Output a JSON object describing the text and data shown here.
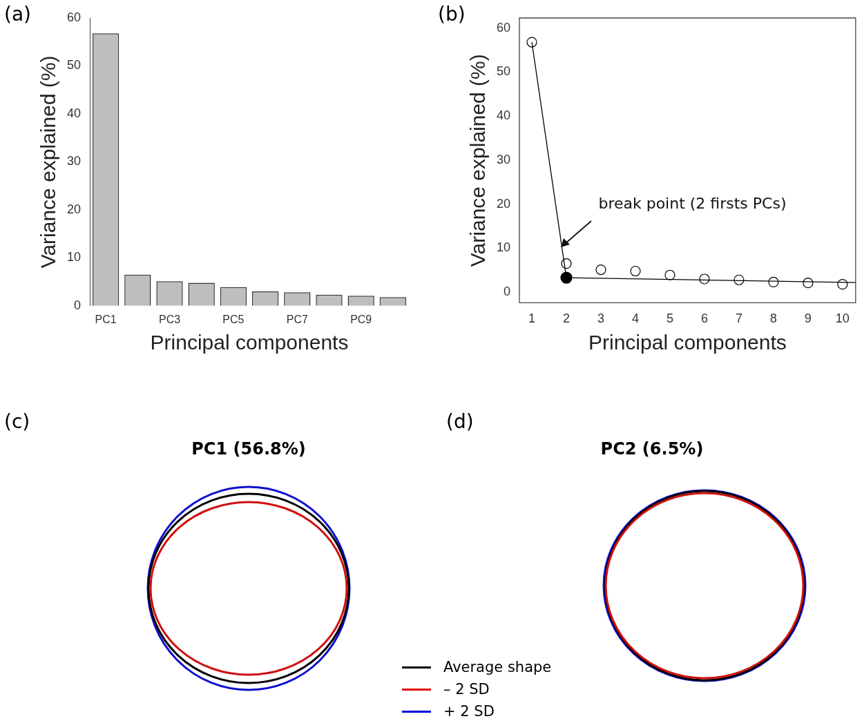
{
  "chart_data": [
    {
      "type": "bar",
      "xlabel": "Principal components",
      "ylabel": "Variance explained (%)",
      "annotations": [
        "(a)"
      ],
      "categories": [
        "PC1",
        null,
        "PC3",
        null,
        "PC5",
        null,
        "PC7",
        null,
        "PC9",
        null
      ],
      "values": [
        56.8,
        6.5,
        5.1,
        4.8,
        3.9,
        3.0,
        2.8,
        2.3,
        2.1,
        1.8
      ],
      "color": "#bebebe",
      "ylim": [
        0,
        60
      ],
      "yticks": [
        0,
        10,
        20,
        30,
        40,
        50,
        60
      ]
    },
    {
      "type": "scatter",
      "xlabel": "Principal components",
      "ylabel": "Variance explained (%)",
      "marker": "circle",
      "annotations": [
        "(b)",
        "break point (2 firsts PCs)"
      ],
      "xlim": [
        0.64,
        10.38
      ],
      "xticks": [
        1,
        2,
        3,
        4,
        5,
        6,
        7,
        8,
        9,
        10
      ],
      "ylim": [
        -2.4,
        62.3
      ],
      "yticks": [
        0,
        10,
        20,
        30,
        40,
        50,
        60
      ],
      "series": [
        {
          "type": "scatter",
          "color": "#000000",
          "x": [
            1,
            2,
            3,
            4,
            5,
            6,
            7,
            8,
            9,
            10
          ],
          "values": [
            56.8,
            6.5,
            5.1,
            4.8,
            3.9,
            3.0,
            2.8,
            2.3,
            2.1,
            1.8
          ]
        },
        {
          "type": "line",
          "color": "#000000",
          "marker": "none",
          "x": [
            1,
            2
          ],
          "values": [
            56.8,
            3.3
          ]
        },
        {
          "type": "line",
          "color": "#000000",
          "marker": "none",
          "x": [
            2,
            10.38
          ],
          "values": [
            3.3,
            2.2
          ]
        },
        {
          "type": "scatter",
          "color": "#000000",
          "x": [
            2
          ],
          "values": [
            3.3
          ]
        }
      ]
    },
    {
      "type": "other",
      "title": "PC1 (56.8%)",
      "annotations": [
        "(c)"
      ]
    },
    {
      "type": "other",
      "title": "PC2 (6.5%)",
      "annotations": [
        "(d)"
      ],
      "legend": "bottom left",
      "series": [
        {
          "name": "Average shape",
          "color": "#000000"
        },
        {
          "name": "– 2 SD",
          "color": "#e00000"
        },
        {
          "name": "+ 2 SD",
          "color": "#0000e0"
        }
      ]
    }
  ]
}
